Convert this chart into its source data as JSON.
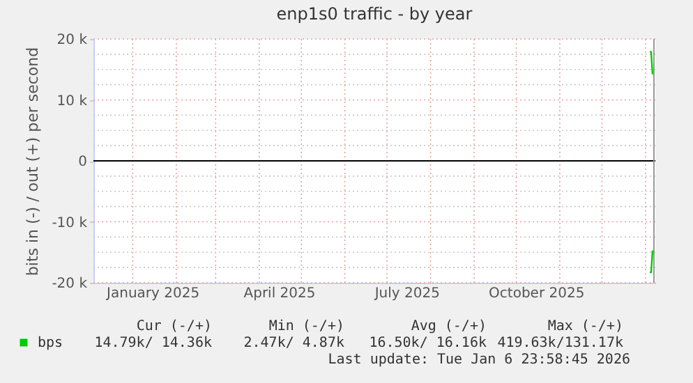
{
  "chart_data": {
    "type": "line",
    "title": "enp1s0 traffic - by year",
    "ylabel": "bits in (-) / out (+) per second",
    "series": [
      {
        "name": "bps",
        "color": "#00cc00",
        "x": [
          "2026-01-04",
          "2026-01-05",
          "2026-01-06"
        ],
        "values": [
          17900,
          17900,
          14200
        ]
      },
      {
        "color": "#00cc00",
        "x": [
          "2026-01-04",
          "2026-01-05",
          "2026-01-06"
        ],
        "values": [
          -18300,
          -18300,
          -14700
        ]
      }
    ],
    "xlim": [
      "2024-12-04",
      "2026-01-08"
    ],
    "xticks": [
      {
        "value": "2025-01-01",
        "label": null
      },
      {
        "value": "2025-01-15",
        "label": "January 2025"
      },
      {
        "value": "2025-02-01",
        "label": null
      },
      {
        "value": "2025-03-01",
        "label": null
      },
      {
        "value": "2025-04-01",
        "label": null
      },
      {
        "value": "2025-04-15",
        "label": "April 2025"
      },
      {
        "value": "2025-05-01",
        "label": null
      },
      {
        "value": "2025-06-01",
        "label": null
      },
      {
        "value": "2025-07-01",
        "label": null
      },
      {
        "value": "2025-07-15",
        "label": "July 2025"
      },
      {
        "value": "2025-08-01",
        "label": null
      },
      {
        "value": "2025-09-01",
        "label": null
      },
      {
        "value": "2025-10-01",
        "label": null
      },
      {
        "value": "2025-10-15",
        "label": "October 2025"
      },
      {
        "value": "2025-11-01",
        "label": null
      },
      {
        "value": "2025-12-01",
        "label": null
      },
      {
        "value": "2026-01-01",
        "label": null
      }
    ],
    "ylim": [
      -20000,
      20000
    ],
    "yticks": [
      {
        "value": -20000,
        "label": "-20 k"
      },
      {
        "value": -17500,
        "label": null
      },
      {
        "value": -15000,
        "label": null
      },
      {
        "value": -12500,
        "label": null
      },
      {
        "value": -10000,
        "label": "-10 k"
      },
      {
        "value": -7500,
        "label": null
      },
      {
        "value": -5000,
        "label": null
      },
      {
        "value": -2500,
        "label": null
      },
      0,
      {
        "value": 2500,
        "label": null
      },
      {
        "value": 5000,
        "label": null
      },
      {
        "value": 7500,
        "label": null
      },
      {
        "value": 10000,
        "label": "10 k"
      },
      {
        "value": 12500,
        "label": null
      },
      {
        "value": 15000,
        "label": null
      },
      {
        "value": 17500,
        "label": null
      },
      {
        "value": 20000,
        "label": "20 k"
      }
    ],
    "ref_lines": [
      {
        "axis": "y",
        "value": 0,
        "color": "#000000"
      },
      {
        "axis": "x",
        "value": "2026-01-06T23:58",
        "color": "#999999"
      }
    ],
    "grid": true,
    "legend": "bottom left",
    "marker": "none",
    "line_style": "solid",
    "annotations": [
      "Cur (-/+)",
      "Min (-/+)",
      "Avg (-/+)",
      "Max (-/+)",
      "14.79k/ 14.36k",
      "2.47k/  4.87k",
      "16.50k/ 16.16k",
      "419.63k/131.17k",
      "Last update: Tue Jan  6 23:58:45 2026"
    ]
  }
}
